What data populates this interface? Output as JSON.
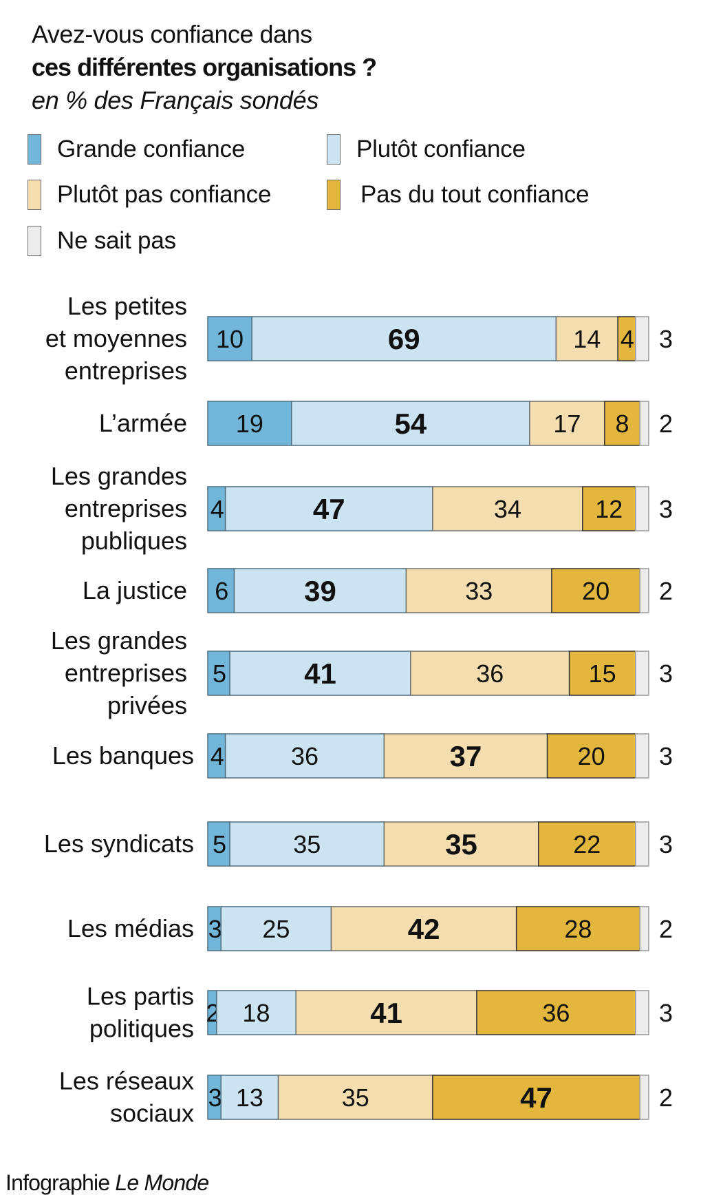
{
  "header": {
    "title_line1": "Avez-vous confiance dans",
    "title_line2": "ces différentes organisations ?",
    "subtitle": "en % des Français sondés"
  },
  "legend": [
    {
      "key": "grande",
      "label": "Grande  confiance",
      "color": "#72b7d9"
    },
    {
      "key": "plutot",
      "label": "Plutôt confiance",
      "color": "#cce3f1"
    },
    {
      "key": "plutot_pas",
      "label": "Plutôt pas confiance",
      "color": "#f4deb0"
    },
    {
      "key": "pas_du_tout",
      "label": "Pas du tout confiance",
      "color": "#e3b73d"
    },
    {
      "key": "ne_sait_pas",
      "label": "Ne sait pas",
      "color": "#ececec"
    }
  ],
  "footer": {
    "prefix": "Infographie",
    "brand": "Le Monde"
  },
  "chart_data": {
    "type": "bar",
    "orientation": "horizontal-stacked-100",
    "title": "Avez-vous confiance dans ces différentes organisations ?",
    "subtitle": "en % des Français sondés",
    "xlabel": "",
    "ylabel": "",
    "xlim": [
      0,
      100
    ],
    "grid": false,
    "legend_position": "top-left",
    "series_names": [
      "Grande  confiance",
      "Plutôt confiance",
      "Plutôt pas confiance",
      "Pas du tout confiance",
      "Ne sait pas"
    ],
    "series_colors": [
      "#72b7d9",
      "#cce3f1",
      "#f4deb0",
      "#e3b73d",
      "#ececec"
    ],
    "categories": [
      [
        "Les petites",
        "et moyennes",
        "entreprises"
      ],
      [
        "L’armée"
      ],
      [
        "Les grandes",
        "entreprises",
        "publiques"
      ],
      [
        "La justice"
      ],
      [
        "Les grandes",
        "entreprises",
        "privées"
      ],
      [
        "Les banques"
      ],
      [
        "Les syndicats"
      ],
      [
        "Les médias"
      ],
      [
        "Les partis",
        "politiques"
      ],
      [
        "Les réseaux",
        "sociaux"
      ]
    ],
    "rows": [
      {
        "values": [
          10,
          69,
          14,
          4,
          3
        ],
        "bold_index": 1
      },
      {
        "values": [
          19,
          54,
          17,
          8,
          2
        ],
        "bold_index": 1
      },
      {
        "values": [
          4,
          47,
          34,
          12,
          3
        ],
        "bold_index": 1
      },
      {
        "values": [
          6,
          39,
          33,
          20,
          2
        ],
        "bold_index": 1
      },
      {
        "values": [
          5,
          41,
          36,
          15,
          3
        ],
        "bold_index": 1
      },
      {
        "values": [
          4,
          36,
          37,
          20,
          3
        ],
        "bold_index": 2
      },
      {
        "values": [
          5,
          35,
          35,
          22,
          3
        ],
        "bold_index": 2
      },
      {
        "values": [
          3,
          25,
          42,
          28,
          2
        ],
        "bold_index": 2
      },
      {
        "values": [
          2,
          18,
          41,
          36,
          3
        ],
        "bold_index": 2
      },
      {
        "values": [
          3,
          13,
          35,
          47,
          2
        ],
        "bold_index": 3
      }
    ]
  }
}
